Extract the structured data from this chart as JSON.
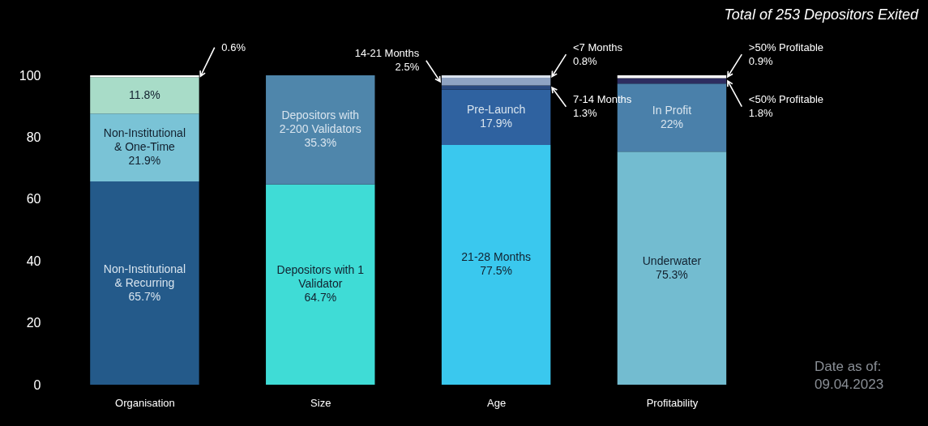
{
  "chart_data": {
    "type": "bar",
    "stacked": true,
    "title": "Total of 253 Depositors Exited",
    "categories": [
      "Organisation",
      "Size",
      "Age",
      "Profitability"
    ],
    "series": [
      {
        "name": "Non-Institutional & Recurring",
        "color": "#245a8a",
        "values": [
          65.7,
          null,
          null,
          null
        ],
        "value_labels": [
          "65.7%",
          null,
          null,
          null
        ]
      },
      {
        "name": "Non-Institutional & One-Time",
        "color": "#7ac3d6",
        "values": [
          21.9,
          null,
          null,
          null
        ],
        "value_labels": [
          "21.9%",
          null,
          null,
          null
        ]
      },
      {
        "color": "#a8dcc8",
        "values": [
          11.8,
          null,
          null,
          null
        ],
        "value_labels": [
          "11.8%",
          null,
          null,
          null
        ]
      },
      {
        "color": "#ffffff",
        "values": [
          0.6,
          null,
          null,
          null
        ],
        "value_labels": [
          "0.6%",
          null,
          null,
          null
        ]
      },
      {
        "name": "Depositors with 1 Validator",
        "color": "#3fdcd6",
        "values": [
          null,
          64.7,
          null,
          null
        ],
        "value_labels": [
          null,
          "64.7%",
          null,
          null
        ]
      },
      {
        "name": "Depositors with 2-200 Validators",
        "color": "#4f86ab",
        "values": [
          null,
          35.3,
          null,
          null
        ],
        "value_labels": [
          null,
          "35.3%",
          null,
          null
        ]
      },
      {
        "name": "21-28 Months",
        "color": "#3ac8ee",
        "values": [
          null,
          null,
          77.5,
          null
        ],
        "value_labels": [
          null,
          null,
          "77.5%",
          null
        ]
      },
      {
        "name": "Pre-Launch",
        "color": "#2f62a0",
        "values": [
          null,
          null,
          17.9,
          null
        ],
        "value_labels": [
          null,
          null,
          "17.9%",
          null
        ]
      },
      {
        "name": "7-14 Months",
        "color": "#2a4a80",
        "values": [
          null,
          null,
          1.3,
          null
        ],
        "value_labels": [
          null,
          null,
          "1.3%",
          null
        ]
      },
      {
        "name": "14-21 Months",
        "color": "#8fa3c3",
        "values": [
          null,
          null,
          2.5,
          null
        ],
        "value_labels": [
          null,
          null,
          "2.5%",
          null
        ]
      },
      {
        "name": "<7 Months",
        "color": "#dbe3ee",
        "values": [
          null,
          null,
          0.8,
          null
        ],
        "value_labels": [
          null,
          null,
          "0.8%",
          null
        ]
      },
      {
        "name": "Underwater",
        "color": "#73bcd0",
        "values": [
          null,
          null,
          null,
          75.3
        ],
        "value_labels": [
          null,
          null,
          null,
          "75.3%"
        ]
      },
      {
        "name": "In Profit",
        "color": "#4a80aa",
        "values": [
          null,
          null,
          null,
          22
        ],
        "value_labels": [
          null,
          null,
          null,
          "22%"
        ]
      },
      {
        "name": "<50% Profitable",
        "color": "#2d2d60",
        "values": [
          null,
          null,
          null,
          1.8
        ],
        "value_labels": [
          null,
          null,
          null,
          "1.8%"
        ]
      },
      {
        "name": ">50% Profitable",
        "color": "#ffffff",
        "values": [
          null,
          null,
          null,
          0.9
        ],
        "value_labels": [
          null,
          null,
          null,
          "0.9%"
        ]
      }
    ],
    "ylim": [
      0,
      100
    ],
    "yticks": [
      0,
      20,
      40,
      60,
      80,
      100
    ],
    "annotations": [
      "Date as of: 09.04.2023"
    ]
  }
}
